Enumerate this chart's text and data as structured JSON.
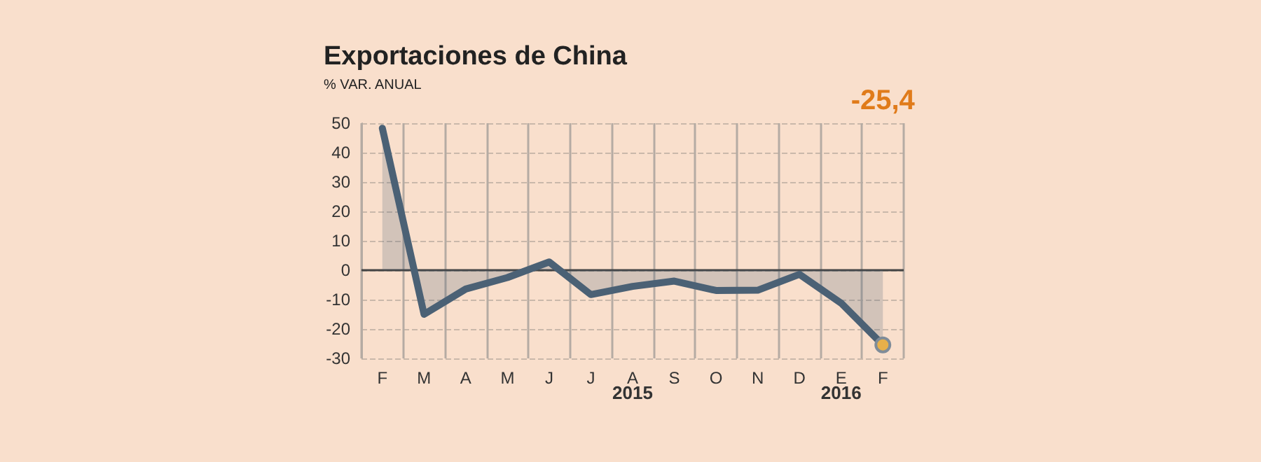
{
  "chart_data": {
    "type": "area",
    "title": "Exportaciones de China",
    "subtitle": "% VAR. ANUAL",
    "categories": [
      "F",
      "M",
      "A",
      "M",
      "J",
      "J",
      "A",
      "S",
      "O",
      "N",
      "D",
      "E",
      "F"
    ],
    "series": [
      {
        "color": "#4b6175",
        "values": [
          48.3,
          -15,
          -6.4,
          -2.5,
          2.8,
          -8.3,
          -5.5,
          -3.7,
          -6.9,
          -6.8,
          -1.4,
          -11.2,
          -25.4
        ]
      }
    ],
    "ylim": [
      -30,
      50
    ],
    "yticks": [
      -30,
      -20,
      -10,
      0,
      10,
      20,
      30,
      40,
      50
    ],
    "grid": true,
    "marker": "none",
    "line_style": "solid",
    "annotations": [
      "-25,4",
      "2015",
      "2016"
    ]
  }
}
